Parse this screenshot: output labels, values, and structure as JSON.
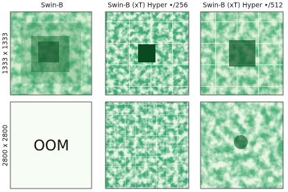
{
  "columns": [
    "Swin-B",
    "Swin-B (xT) Hyper •/256",
    "Swin-B (xT) Hyper •/512"
  ],
  "rows": [
    "1333 x 1333",
    "2800 x 2800"
  ],
  "oom_label": "OOM"
}
